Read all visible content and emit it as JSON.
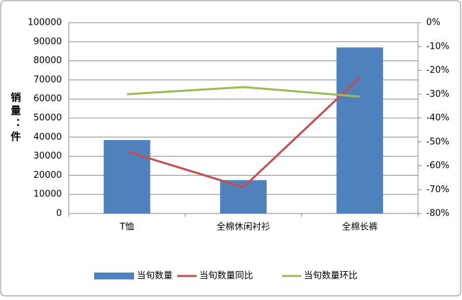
{
  "chart_data": {
    "type": "bar",
    "y_label": "销量：件",
    "categories": [
      "T恤",
      "全棉休闲衬衫",
      "全棉长裤"
    ],
    "series": [
      {
        "name": "当旬数量",
        "type": "bar",
        "color": "#4f81bd",
        "values": [
          38500,
          17500,
          87000
        ]
      },
      {
        "name": "当旬数量同比",
        "type": "line",
        "axis": "y2",
        "color": "#c0504d",
        "values": [
          -54,
          -69,
          -23
        ]
      },
      {
        "name": "当旬数量环比",
        "type": "line",
        "axis": "y2",
        "color": "#9bbb59",
        "values": [
          -30,
          -27,
          -31
        ]
      }
    ],
    "ylim": [
      0,
      100000
    ],
    "yticks": [
      0,
      10000,
      20000,
      30000,
      40000,
      50000,
      60000,
      70000,
      80000,
      90000,
      100000
    ],
    "y2lim": [
      -80,
      0
    ],
    "y2ticks": [
      {
        "value": 0,
        "label": "0%"
      },
      {
        "value": -10,
        "label": "-10%"
      },
      {
        "value": -20,
        "label": "-20%"
      },
      {
        "value": -30,
        "label": "-30%"
      },
      {
        "value": -40,
        "label": "-40%"
      },
      {
        "value": -50,
        "label": "-50%"
      },
      {
        "value": -60,
        "label": "-60%"
      },
      {
        "value": -70,
        "label": "-70%"
      },
      {
        "value": -80,
        "label": "-80%"
      }
    ],
    "grid": true,
    "legend": "bottom"
  }
}
